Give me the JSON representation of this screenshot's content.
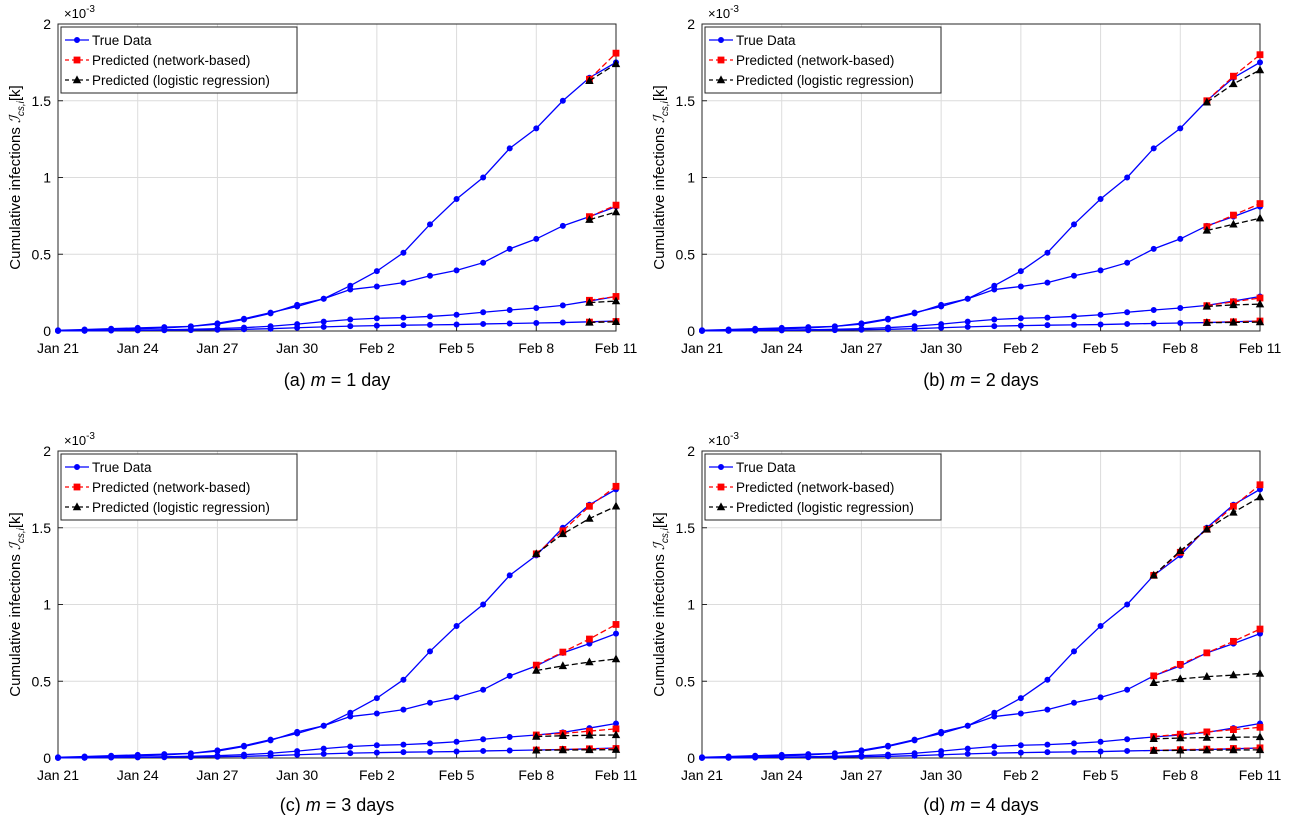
{
  "chart_data": [
    {
      "type": "line",
      "caption": "(a) m = 1 day",
      "caption_prefix": "(a) ",
      "caption_var": "m",
      "caption_suffix": " = 1 day",
      "ylabel": "Cumulative infections",
      "ylabel_math": "ℐ",
      "ylabel_sub": "cs,i",
      "ylabel_tail": "[k]",
      "exponent": "×10",
      "exponent_sup": "-3",
      "ylim": [
        0,
        2
      ],
      "yticks": [
        "0",
        "0.5",
        "1",
        "1.5",
        "2"
      ],
      "ytick_values": [
        0,
        0.5,
        1,
        1.5,
        2
      ],
      "xlim": [
        0,
        21
      ],
      "xticks": [
        "Jan 21",
        "Jan 24",
        "Jan 27",
        "Jan 30",
        "Feb 2",
        "Feb 5",
        "Feb 8",
        "Feb 11"
      ],
      "xtick_values": [
        0,
        3,
        6,
        9,
        12,
        15,
        18,
        21
      ],
      "grid": true,
      "legend_position": "top-left",
      "legend": [
        "True Data",
        "Predicted (network-based)",
        "Predicted (logistic regression)"
      ],
      "true_series": [
        {
          "values": [
            0.005,
            0.01,
            0.015,
            0.02,
            0.025,
            0.03,
            0.045,
            0.075,
            0.115,
            0.17,
            0.21,
            0.295,
            0.39,
            0.51,
            0.695,
            0.86,
            1.0,
            1.19,
            1.32,
            1.5,
            1.65,
            1.75
          ]
        },
        {
          "values": [
            0.003,
            0.006,
            0.01,
            0.015,
            0.02,
            0.03,
            0.05,
            0.08,
            0.12,
            0.16,
            0.21,
            0.27,
            0.29,
            0.315,
            0.36,
            0.395,
            0.445,
            0.535,
            0.6,
            0.685,
            0.745,
            0.81
          ]
        },
        {
          "values": [
            0.001,
            0.002,
            0.004,
            0.006,
            0.008,
            0.011,
            0.015,
            0.022,
            0.031,
            0.045,
            0.061,
            0.075,
            0.083,
            0.087,
            0.095,
            0.106,
            0.122,
            0.137,
            0.15,
            0.167,
            0.195,
            0.225
          ]
        },
        {
          "values": [
            0.001,
            0.002,
            0.003,
            0.004,
            0.005,
            0.006,
            0.008,
            0.011,
            0.015,
            0.021,
            0.027,
            0.032,
            0.035,
            0.038,
            0.04,
            0.042,
            0.046,
            0.049,
            0.052,
            0.055,
            0.06,
            0.065
          ]
        }
      ],
      "network_series": [
        {
          "x": [
            20,
            21
          ],
          "values": [
            1.64,
            1.81
          ]
        },
        {
          "x": [
            20,
            21
          ],
          "values": [
            0.745,
            0.82
          ]
        },
        {
          "x": [
            20,
            21
          ],
          "values": [
            0.2,
            0.225
          ]
        },
        {
          "x": [
            20,
            21
          ],
          "values": [
            0.058,
            0.062
          ]
        }
      ],
      "logistic_series": [
        {
          "x": [
            20,
            21
          ],
          "values": [
            1.63,
            1.74
          ]
        },
        {
          "x": [
            20,
            21
          ],
          "values": [
            0.725,
            0.775
          ]
        },
        {
          "x": [
            20,
            21
          ],
          "values": [
            0.185,
            0.195
          ]
        },
        {
          "x": [
            20,
            21
          ],
          "values": [
            0.056,
            0.06
          ]
        }
      ]
    },
    {
      "type": "line",
      "caption": "(b) m = 2 days",
      "caption_prefix": "(b) ",
      "caption_var": "m",
      "caption_suffix": " = 2 days",
      "ylabel": "Cumulative infections",
      "ylabel_math": "ℐ",
      "ylabel_sub": "cs,i",
      "ylabel_tail": "[k]",
      "exponent": "×10",
      "exponent_sup": "-3",
      "ylim": [
        0,
        2
      ],
      "yticks": [
        "0",
        "0.5",
        "1",
        "1.5",
        "2"
      ],
      "ytick_values": [
        0,
        0.5,
        1,
        1.5,
        2
      ],
      "xlim": [
        0,
        21
      ],
      "xticks": [
        "Jan 21",
        "Jan 24",
        "Jan 27",
        "Jan 30",
        "Feb 2",
        "Feb 5",
        "Feb 8",
        "Feb 11"
      ],
      "xtick_values": [
        0,
        3,
        6,
        9,
        12,
        15,
        18,
        21
      ],
      "grid": true,
      "legend_position": "top-left",
      "legend": [
        "True Data",
        "Predicted (network-based)",
        "Predicted (logistic regression)"
      ],
      "true_series": [
        {
          "values": [
            0.005,
            0.01,
            0.015,
            0.02,
            0.025,
            0.03,
            0.045,
            0.075,
            0.115,
            0.17,
            0.21,
            0.295,
            0.39,
            0.51,
            0.695,
            0.86,
            1.0,
            1.19,
            1.32,
            1.5,
            1.65,
            1.75
          ]
        },
        {
          "values": [
            0.003,
            0.006,
            0.01,
            0.015,
            0.02,
            0.03,
            0.05,
            0.08,
            0.12,
            0.16,
            0.21,
            0.27,
            0.29,
            0.315,
            0.36,
            0.395,
            0.445,
            0.535,
            0.6,
            0.685,
            0.745,
            0.81
          ]
        },
        {
          "values": [
            0.001,
            0.002,
            0.004,
            0.006,
            0.008,
            0.011,
            0.015,
            0.022,
            0.031,
            0.045,
            0.061,
            0.075,
            0.083,
            0.087,
            0.095,
            0.106,
            0.122,
            0.137,
            0.15,
            0.167,
            0.195,
            0.225
          ]
        },
        {
          "values": [
            0.001,
            0.002,
            0.003,
            0.004,
            0.005,
            0.006,
            0.008,
            0.011,
            0.015,
            0.021,
            0.027,
            0.032,
            0.035,
            0.038,
            0.04,
            0.042,
            0.046,
            0.049,
            0.052,
            0.055,
            0.06,
            0.065
          ]
        }
      ],
      "network_series": [
        {
          "x": [
            19,
            20,
            21
          ],
          "values": [
            1.5,
            1.66,
            1.8
          ]
        },
        {
          "x": [
            19,
            20,
            21
          ],
          "values": [
            0.68,
            0.755,
            0.83
          ]
        },
        {
          "x": [
            19,
            20,
            21
          ],
          "values": [
            0.165,
            0.19,
            0.215
          ]
        },
        {
          "x": [
            19,
            20,
            21
          ],
          "values": [
            0.056,
            0.06,
            0.065
          ]
        }
      ],
      "logistic_series": [
        {
          "x": [
            19,
            20,
            21
          ],
          "values": [
            1.49,
            1.61,
            1.7
          ]
        },
        {
          "x": [
            19,
            20,
            21
          ],
          "values": [
            0.655,
            0.695,
            0.735
          ]
        },
        {
          "x": [
            19,
            20,
            21
          ],
          "values": [
            0.16,
            0.17,
            0.175
          ]
        },
        {
          "x": [
            19,
            20,
            21
          ],
          "values": [
            0.054,
            0.056,
            0.058
          ]
        }
      ]
    },
    {
      "type": "line",
      "caption": "(c) m = 3 days",
      "caption_prefix": "(c) ",
      "caption_var": "m",
      "caption_suffix": " = 3 days",
      "ylabel": "Cumulative infections",
      "ylabel_math": "ℐ",
      "ylabel_sub": "cs,i",
      "ylabel_tail": "[k]",
      "exponent": "×10",
      "exponent_sup": "-3",
      "ylim": [
        0,
        2
      ],
      "yticks": [
        "0",
        "0.5",
        "1",
        "1.5",
        "2"
      ],
      "ytick_values": [
        0,
        0.5,
        1,
        1.5,
        2
      ],
      "xlim": [
        0,
        21
      ],
      "xticks": [
        "Jan 21",
        "Jan 24",
        "Jan 27",
        "Jan 30",
        "Feb 2",
        "Feb 5",
        "Feb 8",
        "Feb 11"
      ],
      "xtick_values": [
        0,
        3,
        6,
        9,
        12,
        15,
        18,
        21
      ],
      "grid": true,
      "legend_position": "top-left",
      "legend": [
        "True Data",
        "Predicted (network-based)",
        "Predicted (logistic regression)"
      ],
      "true_series": [
        {
          "values": [
            0.005,
            0.01,
            0.015,
            0.02,
            0.025,
            0.03,
            0.045,
            0.075,
            0.115,
            0.17,
            0.21,
            0.295,
            0.39,
            0.51,
            0.695,
            0.86,
            1.0,
            1.19,
            1.32,
            1.5,
            1.65,
            1.75
          ]
        },
        {
          "values": [
            0.003,
            0.006,
            0.01,
            0.015,
            0.02,
            0.03,
            0.05,
            0.08,
            0.12,
            0.16,
            0.21,
            0.27,
            0.29,
            0.315,
            0.36,
            0.395,
            0.445,
            0.535,
            0.6,
            0.685,
            0.745,
            0.81
          ]
        },
        {
          "values": [
            0.001,
            0.002,
            0.004,
            0.006,
            0.008,
            0.011,
            0.015,
            0.022,
            0.031,
            0.045,
            0.061,
            0.075,
            0.083,
            0.087,
            0.095,
            0.106,
            0.122,
            0.137,
            0.15,
            0.167,
            0.195,
            0.225
          ]
        },
        {
          "values": [
            0.001,
            0.002,
            0.003,
            0.004,
            0.005,
            0.006,
            0.008,
            0.011,
            0.015,
            0.021,
            0.027,
            0.032,
            0.035,
            0.038,
            0.04,
            0.042,
            0.046,
            0.049,
            0.052,
            0.055,
            0.06,
            0.065
          ]
        }
      ],
      "network_series": [
        {
          "x": [
            18,
            19,
            20,
            21
          ],
          "values": [
            1.33,
            1.48,
            1.64,
            1.77
          ]
        },
        {
          "x": [
            18,
            19,
            20,
            21
          ],
          "values": [
            0.605,
            0.69,
            0.775,
            0.87
          ]
        },
        {
          "x": [
            18,
            19,
            20,
            21
          ],
          "values": [
            0.15,
            0.16,
            0.175,
            0.19
          ]
        },
        {
          "x": [
            18,
            19,
            20,
            21
          ],
          "values": [
            0.052,
            0.056,
            0.06,
            0.062
          ]
        }
      ],
      "logistic_series": [
        {
          "x": [
            18,
            19,
            20,
            21
          ],
          "values": [
            1.33,
            1.46,
            1.56,
            1.64
          ]
        },
        {
          "x": [
            18,
            19,
            20,
            21
          ],
          "values": [
            0.57,
            0.6,
            0.625,
            0.645
          ]
        },
        {
          "x": [
            18,
            19,
            20,
            21
          ],
          "values": [
            0.14,
            0.145,
            0.148,
            0.15
          ]
        },
        {
          "x": [
            18,
            19,
            20,
            21
          ],
          "values": [
            0.05,
            0.052,
            0.053,
            0.054
          ]
        }
      ]
    },
    {
      "type": "line",
      "caption": "(d) m = 4 days",
      "caption_prefix": "(d) ",
      "caption_var": "m",
      "caption_suffix": " = 4 days",
      "ylabel": "Cumulative infections",
      "ylabel_math": "ℐ",
      "ylabel_sub": "cs,i",
      "ylabel_tail": "[k]",
      "exponent": "×10",
      "exponent_sup": "-3",
      "ylim": [
        0,
        2
      ],
      "yticks": [
        "0",
        "0.5",
        "1",
        "1.5",
        "2"
      ],
      "ytick_values": [
        0,
        0.5,
        1,
        1.5,
        2
      ],
      "xlim": [
        0,
        21
      ],
      "xticks": [
        "Jan 21",
        "Jan 24",
        "Jan 27",
        "Jan 30",
        "Feb 2",
        "Feb 5",
        "Feb 8",
        "Feb 11"
      ],
      "xtick_values": [
        0,
        3,
        6,
        9,
        12,
        15,
        18,
        21
      ],
      "grid": true,
      "legend_position": "top-left",
      "legend": [
        "True Data",
        "Predicted (network-based)",
        "Predicted (logistic regression)"
      ],
      "true_series": [
        {
          "values": [
            0.005,
            0.01,
            0.015,
            0.02,
            0.025,
            0.03,
            0.045,
            0.075,
            0.115,
            0.17,
            0.21,
            0.295,
            0.39,
            0.51,
            0.695,
            0.86,
            1.0,
            1.19,
            1.32,
            1.5,
            1.65,
            1.75
          ]
        },
        {
          "values": [
            0.003,
            0.006,
            0.01,
            0.015,
            0.02,
            0.03,
            0.05,
            0.08,
            0.12,
            0.16,
            0.21,
            0.27,
            0.29,
            0.315,
            0.36,
            0.395,
            0.445,
            0.535,
            0.6,
            0.685,
            0.745,
            0.81
          ]
        },
        {
          "values": [
            0.001,
            0.002,
            0.004,
            0.006,
            0.008,
            0.011,
            0.015,
            0.022,
            0.031,
            0.045,
            0.061,
            0.075,
            0.083,
            0.087,
            0.095,
            0.106,
            0.122,
            0.137,
            0.15,
            0.167,
            0.195,
            0.225
          ]
        },
        {
          "values": [
            0.001,
            0.002,
            0.003,
            0.004,
            0.005,
            0.006,
            0.008,
            0.011,
            0.015,
            0.021,
            0.027,
            0.032,
            0.035,
            0.038,
            0.04,
            0.042,
            0.046,
            0.049,
            0.052,
            0.055,
            0.06,
            0.065
          ]
        }
      ],
      "network_series": [
        {
          "x": [
            17,
            18,
            19,
            20,
            21
          ],
          "values": [
            1.19,
            1.34,
            1.49,
            1.64,
            1.78
          ]
        },
        {
          "x": [
            17,
            18,
            19,
            20,
            21
          ],
          "values": [
            0.535,
            0.61,
            0.685,
            0.76,
            0.84
          ]
        },
        {
          "x": [
            17,
            18,
            19,
            20,
            21
          ],
          "values": [
            0.14,
            0.155,
            0.17,
            0.185,
            0.2
          ]
        },
        {
          "x": [
            17,
            18,
            19,
            20,
            21
          ],
          "values": [
            0.05,
            0.054,
            0.058,
            0.062,
            0.066
          ]
        }
      ],
      "logistic_series": [
        {
          "x": [
            17,
            18,
            19,
            20,
            21
          ],
          "values": [
            1.19,
            1.35,
            1.49,
            1.6,
            1.7
          ]
        },
        {
          "x": [
            17,
            18,
            19,
            20,
            21
          ],
          "values": [
            0.49,
            0.515,
            0.53,
            0.54,
            0.55
          ]
        },
        {
          "x": [
            17,
            18,
            19,
            20,
            21
          ],
          "values": [
            0.125,
            0.13,
            0.133,
            0.135,
            0.137
          ]
        },
        {
          "x": [
            17,
            18,
            19,
            20,
            21
          ],
          "values": [
            0.048,
            0.05,
            0.051,
            0.052,
            0.053
          ]
        }
      ]
    }
  ],
  "colors": {
    "true_data": "#0000ff",
    "network_line": "#ff0000",
    "network_marker": "#ff0000",
    "logistic": "#000000",
    "grid": "#dcdcdc",
    "axis": "#262626"
  }
}
